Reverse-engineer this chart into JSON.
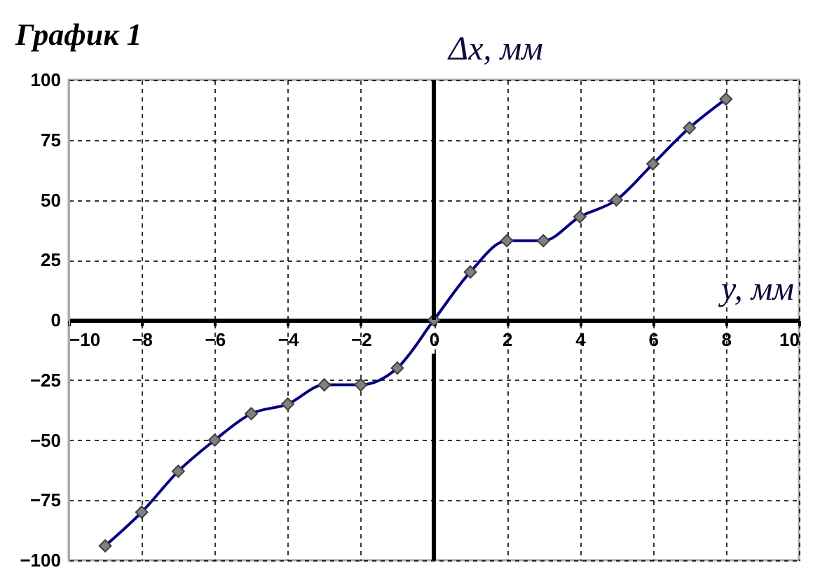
{
  "chart_data": {
    "type": "line",
    "title": "График 1",
    "xlabel": "y, мм",
    "ylabel": "Δx, мм",
    "x": [
      -9,
      -8,
      -7,
      -6,
      -5,
      -4,
      -3,
      -2,
      -1,
      0,
      1,
      2,
      3,
      4,
      5,
      6,
      7,
      8
    ],
    "series": [
      {
        "color": "#000080",
        "values": [
          -94,
          -80,
          -63,
          -50,
          -39,
          -35,
          -27,
          -27,
          -20,
          0,
          20,
          33,
          33,
          43,
          50,
          65,
          80,
          92
        ]
      }
    ],
    "xlim": [
      -10,
      10
    ],
    "xticks": [
      -10,
      -8,
      -6,
      -4,
      -2,
      0,
      2,
      4,
      6,
      8,
      10
    ],
    "ylim": [
      -100,
      100
    ],
    "yticks": [
      -100,
      -75,
      -50,
      -25,
      0,
      25,
      50,
      75,
      100
    ],
    "grid": true,
    "marker": "diamond",
    "line_style": "solid"
  }
}
